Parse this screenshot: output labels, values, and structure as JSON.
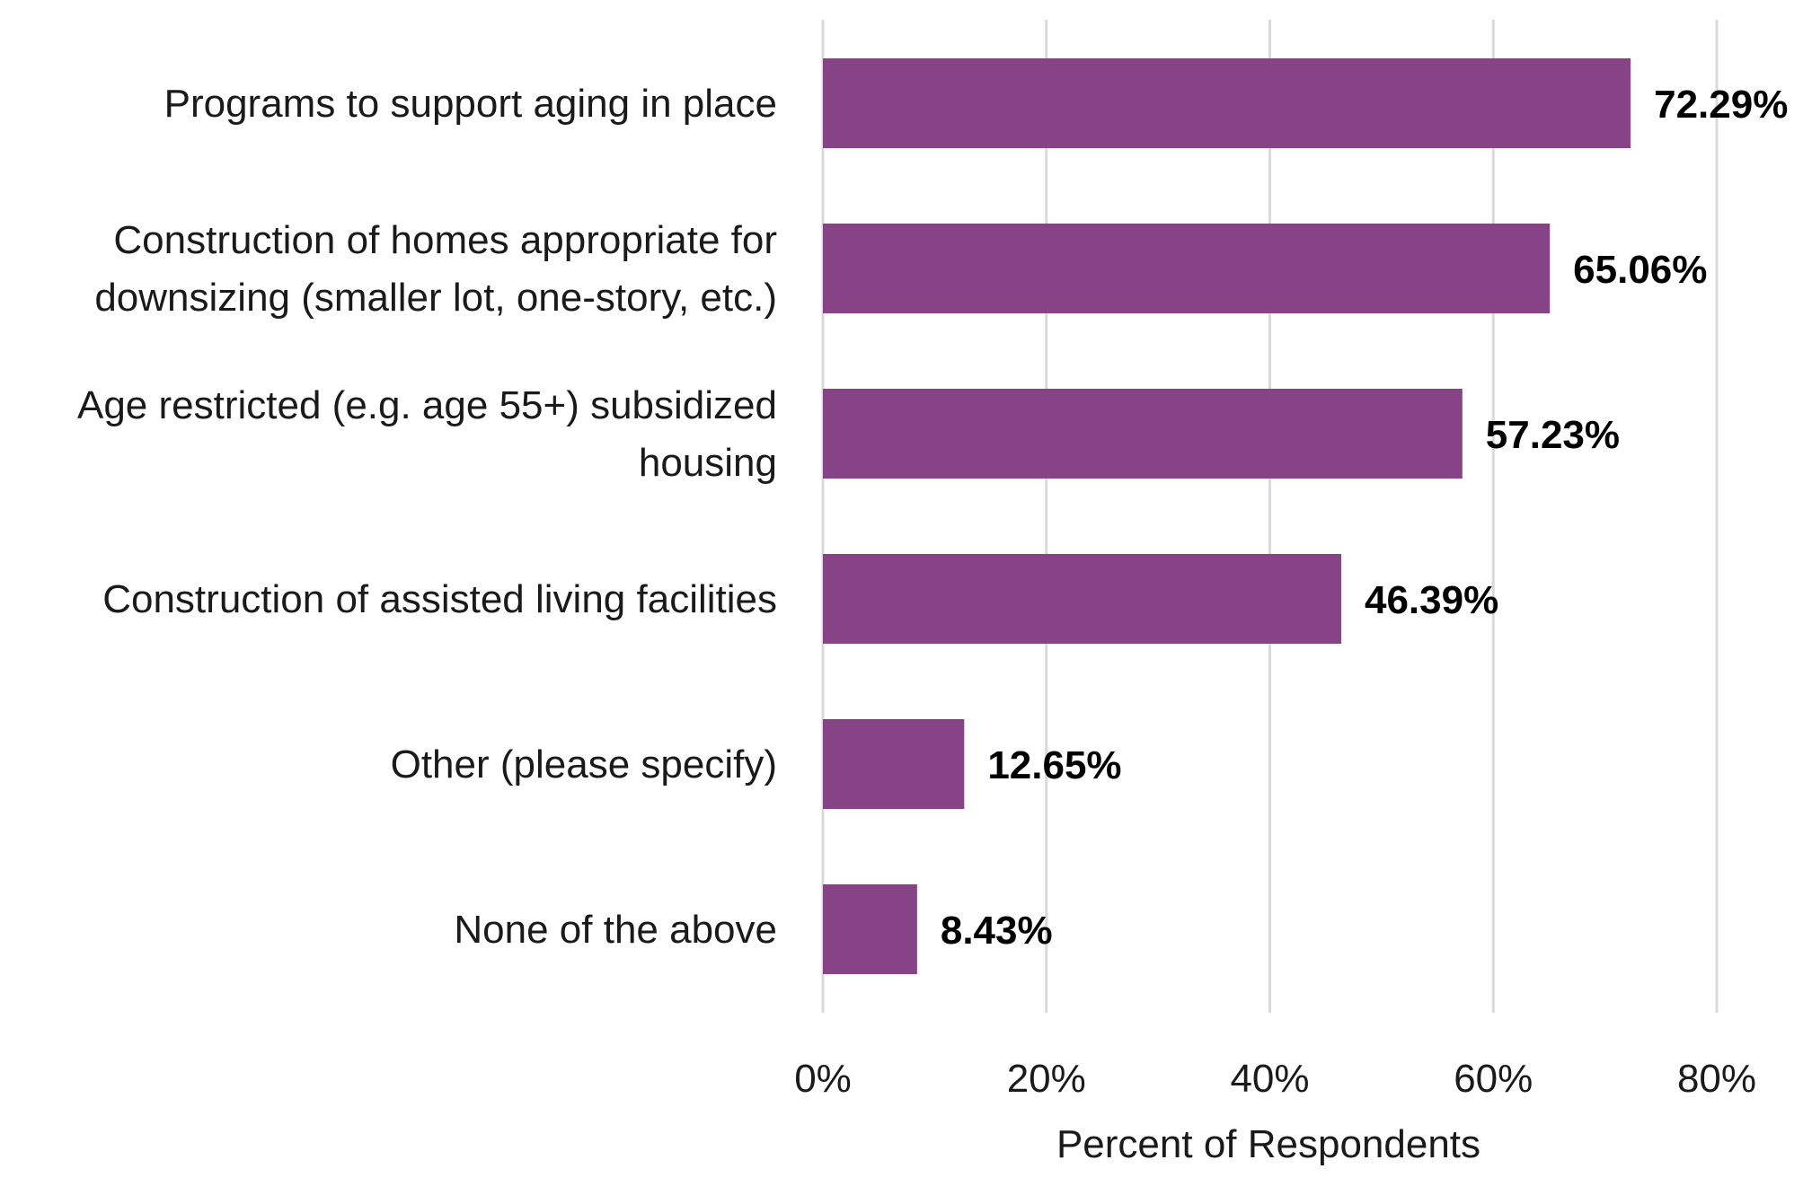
{
  "chart_data": {
    "type": "bar",
    "orientation": "horizontal",
    "categories": [
      [
        "Programs to support aging in place"
      ],
      [
        "Construction of homes appropriate for",
        "downsizing (smaller lot, one-story, etc.)"
      ],
      [
        "Age restricted (e.g. age 55+) subsidized",
        "housing"
      ],
      [
        "Construction of assisted living facilities"
      ],
      [
        "Other (please specify)"
      ],
      [
        "None of the above"
      ]
    ],
    "values": [
      72.29,
      65.06,
      57.23,
      46.39,
      12.65,
      8.43
    ],
    "value_labels": [
      "72.29%",
      "65.06%",
      "57.23%",
      "46.39%",
      "12.65%",
      "8.43%"
    ],
    "xlim": [
      0,
      80
    ],
    "xticks": [
      0,
      20,
      40,
      60,
      80
    ],
    "xtick_labels": [
      "0%",
      "20%",
      "40%",
      "60%",
      "80%"
    ],
    "xlabel": "Percent of Respondents",
    "ylabel": "",
    "title": "",
    "grid": "vertical",
    "bar_color": "#864385",
    "grid_color": "#d9d9d9"
  }
}
